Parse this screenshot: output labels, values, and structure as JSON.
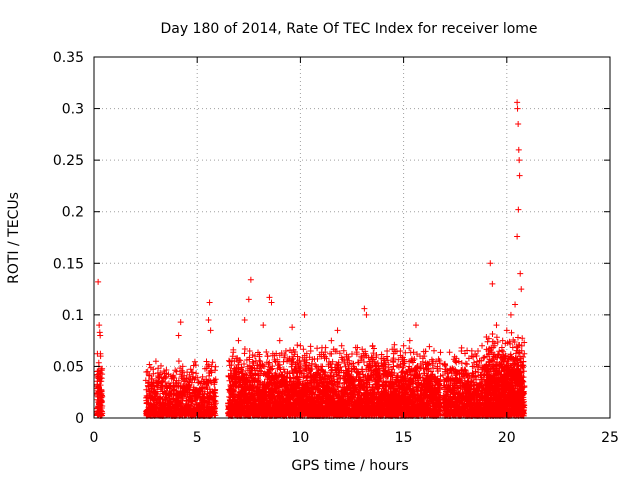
{
  "chart_data": {
    "type": "scatter",
    "title": "Day 180 of 2014, Rate Of TEC Index for receiver lome",
    "xlabel": "GPS time / hours",
    "ylabel": "ROTI / TECUs",
    "xlim": [
      0,
      25
    ],
    "ylim": [
      0,
      0.35
    ],
    "xticks": [
      0,
      5,
      10,
      15,
      20,
      25
    ],
    "yticks": [
      0,
      0.05,
      0.1,
      0.15,
      0.2,
      0.25,
      0.3,
      0.35
    ],
    "xtick_labels": [
      "0",
      "5",
      "10",
      "15",
      "20",
      "25"
    ],
    "ytick_labels": [
      "0",
      "0.05",
      "0.1",
      "0.15",
      "0.2",
      "0.25",
      "0.3",
      "0.35"
    ],
    "grid": true,
    "marker": "+",
    "color": "#ff0000",
    "series": [
      {
        "name": "ROTI",
        "points": [
          [
            0.2,
            0.132
          ],
          [
            0.25,
            0.09
          ],
          [
            0.28,
            0.083
          ],
          [
            0.3,
            0.08
          ],
          [
            0.32,
            0.06
          ],
          [
            0.22,
            0.04
          ],
          [
            0.26,
            0.025
          ],
          [
            0.3,
            0.015
          ],
          [
            0.24,
            0.05
          ],
          [
            0.35,
            0.02
          ],
          [
            2.6,
            0.045
          ],
          [
            2.8,
            0.03
          ],
          [
            3.0,
            0.055
          ],
          [
            3.2,
            0.02
          ],
          [
            3.5,
            0.04
          ],
          [
            4.1,
            0.08
          ],
          [
            4.2,
            0.093
          ],
          [
            4.3,
            0.05
          ],
          [
            4.5,
            0.03
          ],
          [
            4.0,
            0.045
          ],
          [
            4.8,
            0.025
          ],
          [
            5.0,
            0.02
          ],
          [
            5.3,
            0.035
          ],
          [
            5.6,
            0.112
          ],
          [
            5.55,
            0.095
          ],
          [
            5.65,
            0.085
          ],
          [
            5.7,
            0.05
          ],
          [
            5.5,
            0.028
          ],
          [
            6.6,
            0.04
          ],
          [
            6.8,
            0.055
          ],
          [
            7.0,
            0.075
          ],
          [
            7.3,
            0.095
          ],
          [
            7.5,
            0.115
          ],
          [
            7.6,
            0.134
          ],
          [
            7.8,
            0.06
          ],
          [
            8.2,
            0.09
          ],
          [
            8.5,
            0.117
          ],
          [
            8.6,
            0.112
          ],
          [
            9.0,
            0.075
          ],
          [
            9.3,
            0.065
          ],
          [
            9.6,
            0.088
          ],
          [
            10.0,
            0.07
          ],
          [
            10.2,
            0.1
          ],
          [
            10.5,
            0.065
          ],
          [
            11.0,
            0.05
          ],
          [
            11.5,
            0.075
          ],
          [
            11.8,
            0.085
          ],
          [
            12.0,
            0.07
          ],
          [
            12.5,
            0.062
          ],
          [
            12.8,
            0.045
          ],
          [
            13.1,
            0.106
          ],
          [
            13.2,
            0.1
          ],
          [
            13.5,
            0.07
          ],
          [
            14.0,
            0.05
          ],
          [
            14.2,
            0.065
          ],
          [
            14.5,
            0.055
          ],
          [
            15.0,
            0.07
          ],
          [
            15.3,
            0.075
          ],
          [
            15.6,
            0.09
          ],
          [
            16.0,
            0.06
          ],
          [
            16.5,
            0.04
          ],
          [
            17.0,
            0.045
          ],
          [
            17.5,
            0.055
          ],
          [
            17.8,
            0.065
          ],
          [
            18.3,
            0.06
          ],
          [
            18.8,
            0.07
          ],
          [
            19.2,
            0.15
          ],
          [
            19.3,
            0.13
          ],
          [
            19.5,
            0.09
          ],
          [
            19.8,
            0.075
          ],
          [
            20.0,
            0.085
          ],
          [
            20.2,
            0.1
          ],
          [
            20.4,
            0.11
          ],
          [
            20.5,
            0.306
          ],
          [
            20.52,
            0.3
          ],
          [
            20.55,
            0.285
          ],
          [
            20.58,
            0.26
          ],
          [
            20.6,
            0.25
          ],
          [
            20.62,
            0.235
          ],
          [
            20.56,
            0.202
          ],
          [
            20.5,
            0.176
          ],
          [
            20.65,
            0.14
          ],
          [
            20.7,
            0.125
          ],
          [
            20.75,
            0.05
          ],
          [
            20.8,
            0.02
          ]
        ]
      }
    ]
  }
}
